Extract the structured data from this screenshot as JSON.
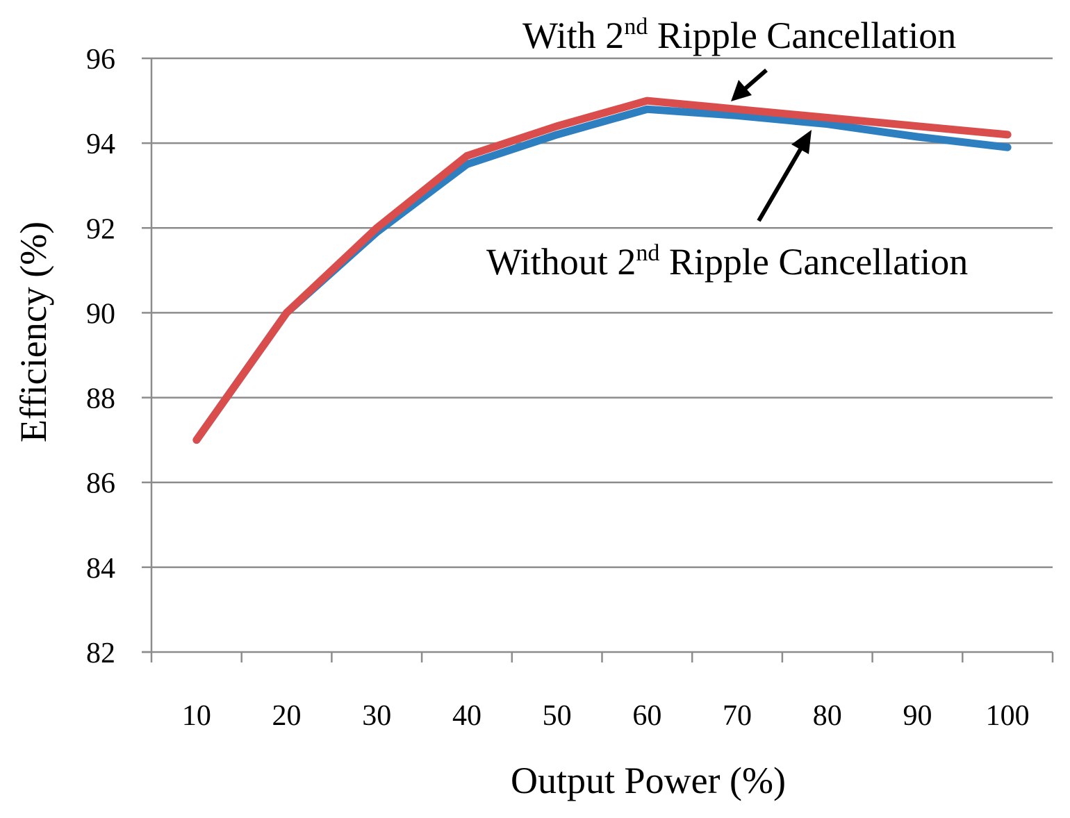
{
  "chart_data": {
    "type": "line",
    "categories": [
      "10",
      "20",
      "30",
      "40",
      "50",
      "60",
      "70",
      "80",
      "90",
      "100"
    ],
    "xlabel": "Output Power (%)",
    "ylabel": "Efficiency (%)",
    "ylim": [
      82,
      96
    ],
    "yticks": [
      "82",
      "84",
      "86",
      "88",
      "90",
      "92",
      "94",
      "96"
    ],
    "grid": true,
    "series": [
      {
        "name": "Without 2nd Ripple Cancellation",
        "color": "#2e7fc0",
        "values": [
          87.0,
          90.0,
          91.9,
          93.5,
          94.2,
          94.8,
          94.65,
          94.45,
          94.15,
          93.9
        ]
      },
      {
        "name": "With 2nd Ripple Cancellation",
        "color": "#d94d4d",
        "values": [
          87.0,
          90.0,
          92.0,
          93.7,
          94.4,
          95.0,
          94.8,
          94.6,
          94.4,
          94.2
        ]
      }
    ],
    "annotations": {
      "with_label": {
        "prefix": "With 2",
        "sup": "nd",
        "suffix": " Ripple Cancellation"
      },
      "without_label": {
        "prefix": "Without 2",
        "sup": "nd",
        "suffix": " Ripple Cancellation"
      }
    }
  }
}
